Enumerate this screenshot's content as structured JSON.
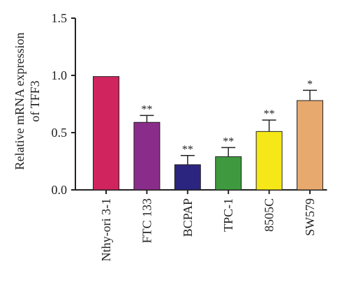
{
  "chart_data": {
    "type": "bar",
    "ylabel_lines": [
      "Relative mRNA expression",
      "of TFF3"
    ],
    "xlabel": "",
    "ylim": [
      0,
      1.5
    ],
    "yticks": [
      "0.0",
      "0.5",
      "1.0",
      "1.5"
    ],
    "ytick_values": [
      0,
      0.5,
      1.0,
      1.5
    ],
    "categories": [
      "Nthy-ori 3-1",
      "FTC 133",
      "BCPAP",
      "TPC-1",
      "8505C",
      "SW579"
    ],
    "values": [
      0.99,
      0.59,
      0.22,
      0.29,
      0.51,
      0.78
    ],
    "error_upper": [
      0.99,
      0.65,
      0.3,
      0.37,
      0.61,
      0.87
    ],
    "significance": [
      "",
      "**",
      "**",
      "**",
      "**",
      "*"
    ],
    "colors": [
      "#d0245e",
      "#8a2d8a",
      "#2b2580",
      "#3f9a3f",
      "#f6e818",
      "#e8a96e"
    ]
  }
}
